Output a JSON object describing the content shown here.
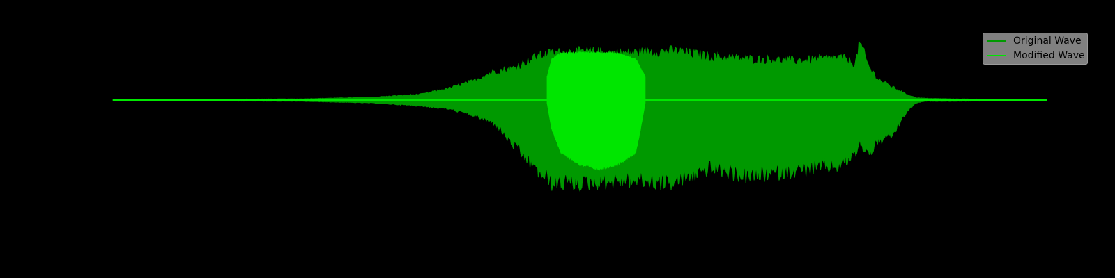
{
  "chart_data": {
    "type": "area",
    "title": "",
    "xlabel": "",
    "ylabel": "",
    "axes_visible": false,
    "grid": false,
    "legend_placement": "top-right",
    "xlim": [
      0,
      1
    ],
    "ylim": [
      -1,
      1
    ],
    "series": [
      {
        "name": "Original Wave",
        "color": "#009900",
        "envelope": {
          "x": [
            0.0,
            0.2,
            0.28,
            0.33,
            0.36,
            0.385,
            0.41,
            0.425,
            0.44,
            0.455,
            0.47,
            0.5,
            0.55,
            0.6,
            0.64,
            0.68,
            0.73,
            0.78,
            0.795,
            0.8,
            0.81,
            0.82,
            0.835,
            0.85,
            0.86,
            0.87,
            0.9,
            1.0
          ],
          "upper": [
            0.01,
            0.02,
            0.05,
            0.1,
            0.2,
            0.32,
            0.5,
            0.52,
            0.62,
            0.75,
            0.8,
            0.82,
            0.8,
            0.84,
            0.74,
            0.7,
            0.67,
            0.72,
            0.62,
            0.98,
            0.55,
            0.35,
            0.22,
            0.1,
            0.04,
            0.03,
            0.02,
            0.01
          ],
          "lower": [
            -0.01,
            -0.02,
            -0.05,
            -0.1,
            -0.15,
            -0.25,
            -0.4,
            -0.7,
            -0.95,
            -1.2,
            -1.4,
            -1.4,
            -1.35,
            -1.4,
            -1.15,
            -1.3,
            -1.2,
            -1.1,
            -0.9,
            -0.75,
            -0.9,
            -0.7,
            -0.6,
            -0.2,
            -0.05,
            -0.02,
            -0.02,
            -0.01
          ]
        }
      },
      {
        "name": "Modified Wave",
        "color": "#00e600",
        "envelope": {
          "x": [
            0.465,
            0.47,
            0.48,
            0.5,
            0.52,
            0.54,
            0.56,
            0.565,
            0.57
          ],
          "upper": [
            0.4,
            0.7,
            0.8,
            0.81,
            0.81,
            0.8,
            0.7,
            0.55,
            0.4
          ],
          "lower": [
            -0.05,
            -0.5,
            -0.9,
            -1.1,
            -1.18,
            -1.1,
            -0.9,
            -0.5,
            -0.05
          ]
        }
      }
    ]
  }
}
